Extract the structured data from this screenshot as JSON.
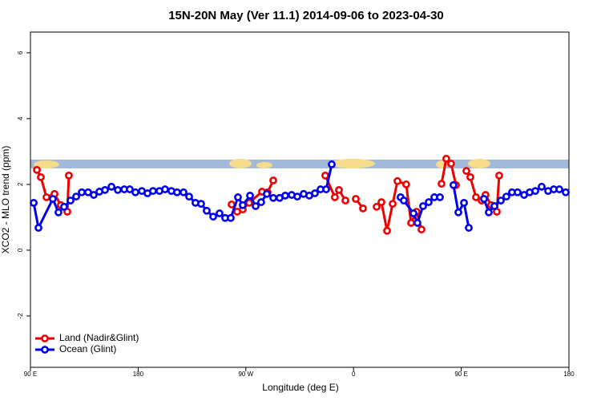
{
  "chart_data": {
    "type": "line",
    "title": "15N-20N May (Ver 11.1)   2014-09-06 to 2023-04-30",
    "x_label": "Longitude (deg E)",
    "y_label": "XCO2 - MLO trend (ppm)",
    "xlim": [
      90,
      540
    ],
    "ylim": [
      -3.56,
      6.63
    ],
    "xticks": [
      {
        "value": 90,
        "label": "90 E"
      },
      {
        "value": 180,
        "label": "180"
      },
      {
        "value": 270,
        "label": "90 W"
      },
      {
        "value": 360,
        "label": "0"
      },
      {
        "value": 450,
        "label": "90 E"
      },
      {
        "value": 540,
        "label": "180"
      }
    ],
    "yticks": [
      -2,
      0,
      2,
      4,
      6
    ],
    "legend": "bottom-left",
    "series": [
      {
        "name": "Land (Nadir&Glint)",
        "color": "#ee0000",
        "x": [
          95.4,
          98.7,
          103.4,
          110.1,
          115.4,
          120.8,
          122.1,
          null,
          258.1,
          262.8,
          267.4,
          272.8,
          283.5,
          288.2,
          292.9,
          null,
          336.4,
          344.4,
          347.8,
          353.2,
          null,
          361.9,
          367.9,
          null,
          379.3,
          383.3,
          388.0,
          392.7,
          396.7,
          404.0,
          408.1,
          412.7,
          416.8,
          null,
          433.5,
          437.5,
          441.5,
          445.6,
          null,
          454.3,
          457.6,
          462.3,
          467.0,
          470.3,
          475.0,
          479.7,
          481.7
        ],
        "values": [
          2.44,
          2.22,
          1.61,
          1.71,
          1.37,
          1.17,
          2.27,
          null,
          1.39,
          1.17,
          1.24,
          1.44,
          1.78,
          1.76,
          2.12,
          null,
          2.27,
          1.61,
          1.83,
          1.51,
          null,
          1.56,
          1.27,
          null,
          1.32,
          1.46,
          0.59,
          1.41,
          2.1,
          2.0,
          0.83,
          1.17,
          0.63,
          null,
          2.02,
          2.78,
          2.63,
          1.98,
          null,
          2.41,
          2.22,
          1.61,
          1.51,
          1.68,
          1.37,
          1.17,
          2.27
        ]
      },
      {
        "name": "Ocean (Glint)",
        "color": "#0000ee",
        "x": [
          92.7,
          96.7,
          108.7,
          113.4,
          118.1,
          123.5,
          128.2,
          132.9,
          138.2,
          142.9,
          147.6,
          152.3,
          157.7,
          163.0,
          168.4,
          173.0,
          177.7,
          183.1,
          187.8,
          192.4,
          197.8,
          202.5,
          207.8,
          212.5,
          217.9,
          222.6,
          227.9,
          232.6,
          237.3,
          242.7,
          248.0,
          252.7,
          257.4,
          263.4,
          267.4,
          273.5,
          278.2,
          282.8,
          287.5,
          292.9,
          298.2,
          302.9,
          308.3,
          313.0,
          318.3,
          323.0,
          327.7,
          332.4,
          337.1,
          341.8,
          null,
          399.3,
          402.0,
          410.1,
          413.4,
          418.1,
          422.8,
          427.5,
          432.2,
          null,
          443.5,
          447.6,
          452.3,
          456.3,
          null,
          469.0,
          473.0,
          477.7,
          483.1,
          487.7,
          492.4,
          497.1,
          502.5,
          507.2,
          511.9,
          517.2,
          522.6,
          527.3,
          532.0,
          537.3
        ],
        "values": [
          1.44,
          0.68,
          1.56,
          1.15,
          1.32,
          1.51,
          1.63,
          1.76,
          1.76,
          1.68,
          1.78,
          1.83,
          1.93,
          1.83,
          1.85,
          1.85,
          1.76,
          1.8,
          1.73,
          1.8,
          1.8,
          1.85,
          1.8,
          1.76,
          1.76,
          1.63,
          1.44,
          1.41,
          1.2,
          1.02,
          1.12,
          0.98,
          0.98,
          1.61,
          1.37,
          1.66,
          1.34,
          1.46,
          1.71,
          1.59,
          1.59,
          1.66,
          1.68,
          1.63,
          1.71,
          1.66,
          1.73,
          1.85,
          1.85,
          2.61,
          null,
          1.61,
          1.51,
          1.12,
          0.83,
          1.34,
          1.46,
          1.61,
          1.61,
          null,
          1.98,
          1.15,
          1.44,
          0.68,
          null,
          1.56,
          1.15,
          1.34,
          1.51,
          1.63,
          1.76,
          1.76,
          1.68,
          1.76,
          1.8,
          1.93,
          1.8,
          1.85,
          1.85,
          1.76
        ]
      }
    ]
  }
}
